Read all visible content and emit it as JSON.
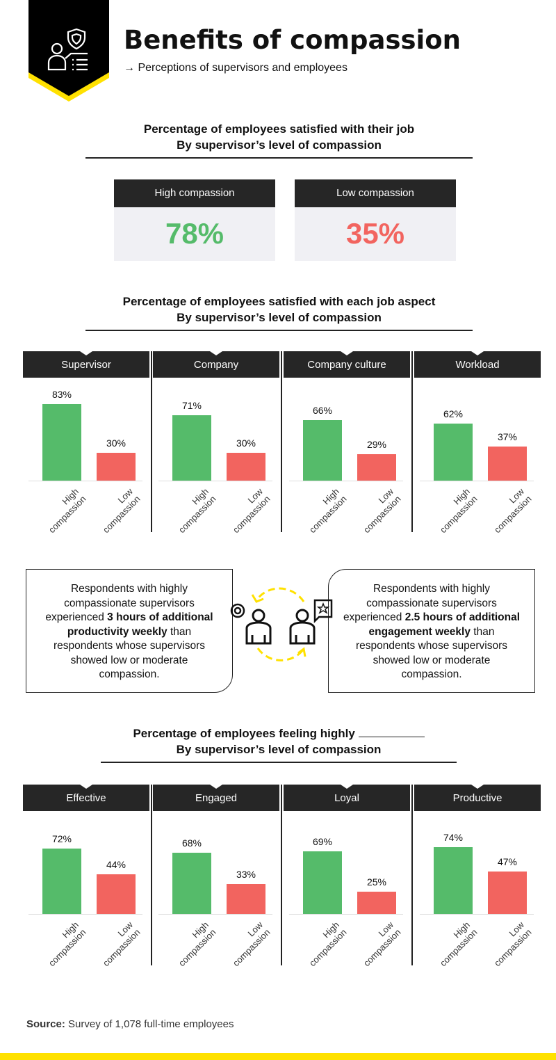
{
  "header": {
    "title": "Benefits of compassion",
    "subtitle": "Perceptions of supervisors and employees",
    "badge_icon": "supervisor-shield-list-icon",
    "accent": "#ffe100"
  },
  "colors": {
    "high": "#55bb6a",
    "low": "#f2645f",
    "dark": "#262626"
  },
  "overall": {
    "title_line1": "Percentage of employees satisfied with their job",
    "title_line2": "By supervisor’s level of compassion",
    "cards": [
      {
        "label": "High compassion",
        "value": "78%"
      },
      {
        "label": "Low compassion",
        "value": "35%"
      }
    ]
  },
  "aspects": {
    "title_line1": "Percentage of employees satisfied with each job aspect",
    "title_line2": "By supervisor’s level of compassion"
  },
  "feelings": {
    "title_line1": "Percentage of employees feeling highly",
    "title_line2": "By supervisor’s level of compassion"
  },
  "callouts": {
    "left": {
      "pre": "Respondents with highly compassionate supervisors experienced ",
      "bold": "3 hours of additional productivity weekly",
      "post": " than respondents whose supervisors showed low or moderate compassion."
    },
    "right": {
      "pre": "Respondents with highly compassionate supervisors experienced ",
      "bold": "2.5 hours of additional engagement weekly",
      "post": " than respondents whose supervisors showed low or moderate compassion."
    }
  },
  "source": {
    "label": "Source:",
    "text": " Survey of 1,078 full-time employees"
  },
  "chart_data": [
    {
      "type": "bar",
      "title": "Percentage of employees satisfied with each job aspect",
      "categories": [
        "High compassion",
        "Low compassion"
      ],
      "xlabels": [
        [
          "High",
          "compassion"
        ],
        [
          "Low",
          "compassion"
        ]
      ],
      "ylim": [
        0,
        100
      ],
      "panels": [
        {
          "name": "Supervisor",
          "values": [
            83,
            30
          ]
        },
        {
          "name": "Company",
          "values": [
            71,
            30
          ]
        },
        {
          "name": "Company culture",
          "values": [
            66,
            29
          ]
        },
        {
          "name": "Workload",
          "values": [
            62,
            37
          ]
        }
      ]
    },
    {
      "type": "bar",
      "title": "Percentage of employees feeling highly",
      "categories": [
        "High compassion",
        "Low compassion"
      ],
      "xlabels": [
        [
          "High",
          "compassion"
        ],
        [
          "Low",
          "compassion"
        ]
      ],
      "ylim": [
        0,
        100
      ],
      "panels": [
        {
          "name": "Effective",
          "values": [
            72,
            44
          ]
        },
        {
          "name": "Engaged",
          "values": [
            68,
            33
          ]
        },
        {
          "name": "Loyal",
          "values": [
            69,
            25
          ]
        },
        {
          "name": "Productive",
          "values": [
            74,
            47
          ]
        }
      ]
    }
  ]
}
